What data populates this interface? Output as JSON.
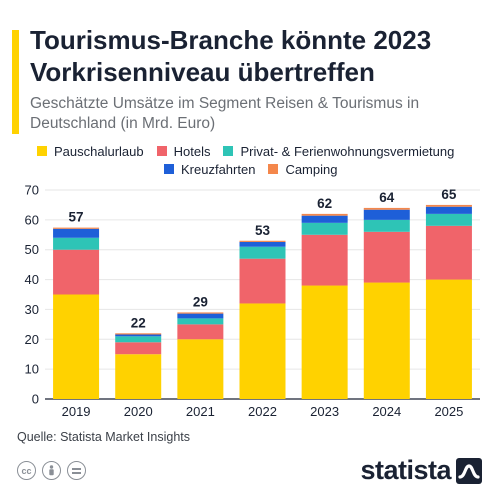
{
  "title": "Tourismus-Branche könnte 2023 Vorkrisenniveau übertreffen",
  "subtitle": "Geschätzte Umsätze im Segment Reisen & Tourismus in Deutschland (in Mrd. Euro)",
  "source": "Quelle: Statista Market Insights",
  "brand": "statista",
  "license_icons": [
    "cc-icon",
    "person-icon",
    "equals-icon"
  ],
  "colors": {
    "accent": "#FFD200",
    "text": "#1a2233",
    "grid": "#e6e6e6"
  },
  "chart_data": {
    "type": "bar",
    "stacked": true,
    "categories": [
      "2019",
      "2020",
      "2021",
      "2022",
      "2023",
      "2024",
      "2025"
    ],
    "series": [
      {
        "name": "Pauschalurlaub",
        "color": "#FFD200",
        "values": [
          35,
          15,
          20,
          32,
          38,
          39,
          40
        ]
      },
      {
        "name": "Hotels",
        "color": "#F0646A",
        "values": [
          15,
          4,
          5,
          15,
          17,
          17,
          18
        ]
      },
      {
        "name": "Privat- & Ferienwohnungsvermietung",
        "color": "#2EC4B6",
        "values": [
          4,
          2,
          2,
          4,
          4,
          4,
          4
        ]
      },
      {
        "name": "Kreuzfahrten",
        "color": "#1E5FD8",
        "values": [
          3,
          0.6,
          1.6,
          1.6,
          2.4,
          3.4,
          2.4
        ]
      },
      {
        "name": "Camping",
        "color": "#F4874B",
        "values": [
          0.4,
          0.4,
          0.4,
          0.4,
          0.6,
          0.6,
          0.6
        ]
      }
    ],
    "totals": [
      "57",
      "22",
      "29",
      "53",
      "62",
      "64",
      "65"
    ],
    "ylim": [
      0,
      70
    ],
    "yticks": [
      "0",
      "10",
      "20",
      "30",
      "40",
      "50",
      "60",
      "70"
    ],
    "grid": true,
    "legend_position": "top"
  }
}
